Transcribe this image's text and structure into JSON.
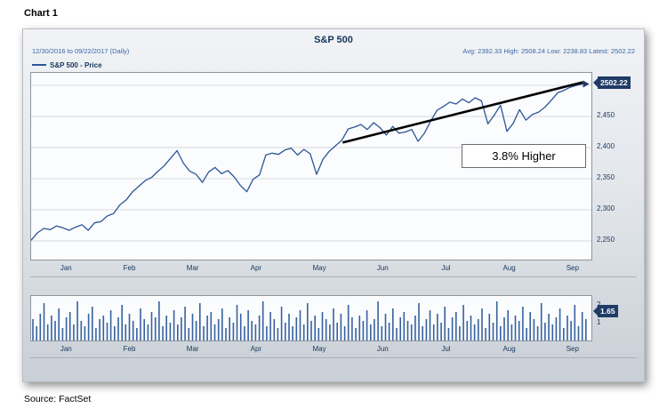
{
  "page": {
    "chart_label": "Chart 1",
    "source": "Source: FactSet"
  },
  "chart_data": {
    "type": "line",
    "title": "S&P 500",
    "date_range": "12/30/2016 to 09/22/2017 (Daily)",
    "stats_line": "Avg: 2392.33 High: 2508.24 Low: 2238.83 Latest: 2502.22",
    "stats": {
      "avg": 2392.33,
      "high": 2508.24,
      "low": 2238.83,
      "latest": 2502.22
    },
    "series_label": "S&P 500 - Price",
    "line_color": "#2A5697",
    "badge_color": "#1F3B66",
    "annotation": "3.8% Higher",
    "latest_badge": "2502.22",
    "ylim": [
      2220,
      2520
    ],
    "y_ticks": [
      2500,
      2450,
      2400,
      2350,
      2300,
      2250
    ],
    "grid": true,
    "legend_position": "top-left",
    "months": [
      "Jan",
      "Feb",
      "Mar",
      "Apr",
      "May",
      "Jun",
      "Jul",
      "Aug",
      "Sep"
    ],
    "series": [
      {
        "name": "S&P 500 - Price",
        "values": [
          2251,
          2263,
          2270,
          2268,
          2274,
          2271,
          2267,
          2272,
          2276,
          2267,
          2279,
          2281,
          2290,
          2294,
          2308,
          2316,
          2329,
          2338,
          2347,
          2352,
          2362,
          2371,
          2383,
          2395,
          2375,
          2362,
          2357,
          2344,
          2361,
          2368,
          2358,
          2363,
          2353,
          2339,
          2329,
          2349,
          2356,
          2388,
          2391,
          2389,
          2396,
          2399,
          2388,
          2397,
          2390,
          2357,
          2381,
          2394,
          2403,
          2412,
          2430,
          2433,
          2437,
          2429,
          2440,
          2432,
          2420,
          2434,
          2423,
          2425,
          2429,
          2410,
          2423,
          2443,
          2460,
          2466,
          2473,
          2470,
          2478,
          2472,
          2480,
          2475,
          2438,
          2452,
          2468,
          2426,
          2439,
          2461,
          2444,
          2453,
          2457,
          2465,
          2476,
          2488,
          2492,
          2497,
          2500,
          2502.22
        ]
      }
    ],
    "trend_line": {
      "x1_frac": 0.556,
      "value1": 2408,
      "x2_frac": 0.985,
      "value2": 2505,
      "color": "#000000"
    },
    "volume": {
      "badge": "1.65",
      "ylim": [
        0,
        2.5
      ],
      "y_ticks": [
        2,
        1
      ],
      "bar_color": "#37619f",
      "bars": [
        1.2,
        0.8,
        1.5,
        2.1,
        0.9,
        1.4,
        1.1,
        1.8,
        0.7,
        1.3,
        1.6,
        0.9,
        2.2,
        1.1,
        0.8,
        1.5,
        1.9,
        0.7,
        1.2,
        1.4,
        1.0,
        1.7,
        0.8,
        1.3,
        2.0,
        0.9,
        1.5,
        1.1,
        0.7,
        1.8,
        1.2,
        0.9,
        1.6,
        1.3,
        2.2,
        0.8,
        1.4,
        1.0,
        1.7,
        0.9,
        1.3,
        1.9,
        0.7,
        1.5,
        1.1,
        2.1,
        0.8,
        1.4,
        1.6,
        0.9,
        1.2,
        1.8,
        0.7,
        1.3,
        1.0,
        2.0,
        1.5,
        0.8,
        1.7,
        1.1,
        0.9,
        1.4,
        2.2,
        0.8,
        1.6,
        1.2,
        0.7,
        1.9,
        1.0,
        1.5,
        0.8,
        1.3,
        1.7,
        0.9,
        2.1,
        1.1,
        1.4,
        0.7,
        1.6,
        1.2,
        0.9,
        1.8,
        1.0,
        1.5,
        0.8,
        2.0,
        1.3,
        0.7,
        1.4,
        1.1,
        1.7,
        0.9,
        1.2,
        2.2,
        0.8,
        1.5,
        1.0,
        1.8,
        0.7,
        1.3,
        1.6,
        1.1,
        0.9,
        1.4,
        2.1,
        0.8,
        1.2,
        1.7,
        0.9,
        1.5,
        1.0,
        1.9,
        0.7,
        1.3,
        1.6,
        0.8,
        2.0,
        1.1,
        1.4,
        0.9,
        1.2,
        1.8,
        0.7,
        1.5,
        1.0,
        2.2,
        0.8,
        1.3,
        1.7,
        0.9,
        1.4,
        1.1,
        1.9,
        0.7,
        1.6,
        1.2,
        0.8,
        2.1,
        1.0,
        1.5,
        0.9,
        1.3,
        1.8,
        0.7,
        1.4,
        1.1,
        2.0,
        0.8,
        1.6,
        1.2
      ]
    }
  }
}
